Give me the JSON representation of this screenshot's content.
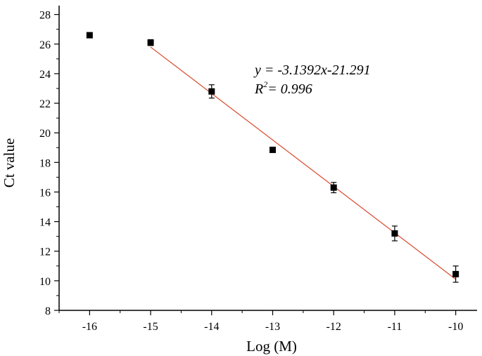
{
  "chart_data": {
    "type": "scatter",
    "title": "",
    "xlabel": "Log (M)",
    "ylabel": "Ct value",
    "xlim": [
      -16.5,
      -9.65
    ],
    "ylim": [
      8,
      28.6
    ],
    "xticks": [
      -16,
      -15,
      -14,
      -13,
      -12,
      -11,
      -10
    ],
    "xtick_labels": [
      "-16",
      "-15",
      "-14",
      "-13",
      "-12",
      "-11",
      "-10"
    ],
    "yticks": [
      8,
      10,
      12,
      14,
      16,
      18,
      20,
      22,
      24,
      26,
      28
    ],
    "ytick_labels": [
      "8",
      "10",
      "12",
      "14",
      "16",
      "18",
      "20",
      "22",
      "24",
      "26",
      "28"
    ],
    "grid": false,
    "marker": "square",
    "marker_color": "#000000",
    "fit_color": "#d9472b",
    "points": [
      {
        "x": -16,
        "y": 26.6,
        "err": 0
      },
      {
        "x": -15,
        "y": 26.1,
        "err": 0.2
      },
      {
        "x": -14,
        "y": 22.8,
        "err": 0.45
      },
      {
        "x": -13,
        "y": 18.85,
        "err": 0
      },
      {
        "x": -12,
        "y": 16.3,
        "err": 0.35
      },
      {
        "x": -11,
        "y": 13.2,
        "err": 0.5
      },
      {
        "x": -10,
        "y": 10.45,
        "err": 0.55
      }
    ],
    "fit": {
      "slope": -3.1392,
      "intercept": -21.291,
      "x_range": [
        -15,
        -10
      ]
    },
    "annotation": {
      "equation": "y = -3.1392x-21.291",
      "r2_prefix": "R",
      "r2_sup": "2",
      "r2_value": "= 0.996"
    }
  }
}
